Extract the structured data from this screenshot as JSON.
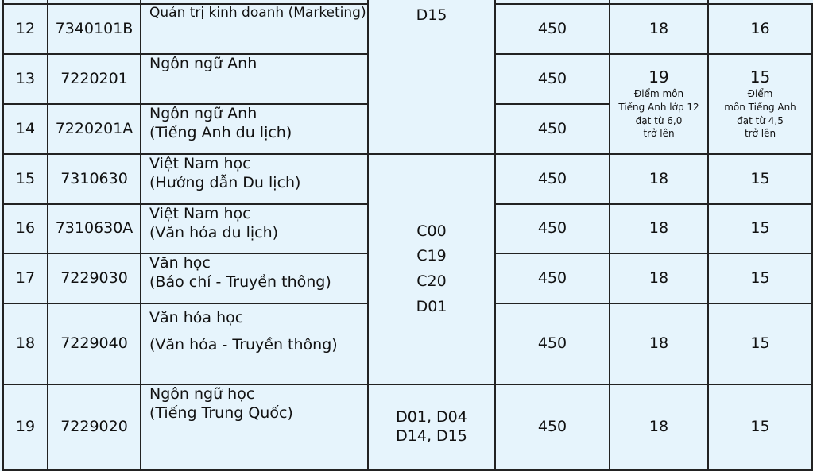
{
  "rows": [
    {
      "no": "12",
      "code": "7340101B",
      "name": "Quản trị kinh doanh (Marketing)",
      "quota": "450",
      "score_a": "18",
      "score_b": "16"
    },
    {
      "no": "13",
      "code": "7220201",
      "name": "Ngôn ngữ Anh",
      "quota": "450"
    },
    {
      "no": "14",
      "code": "7220201A",
      "name": "Ngôn ngữ Anh",
      "name2": "(Tiếng Anh du lịch)",
      "quota": "450"
    },
    {
      "no": "15",
      "code": "7310630",
      "name": "Việt Nam học",
      "name2": "(Hướng dẫn Du lịch)",
      "quota": "450",
      "score_a": "18",
      "score_b": "15"
    },
    {
      "no": "16",
      "code": "7310630A",
      "name": "Việt Nam học",
      "name2": "(Văn hóa du lịch)",
      "quota": "450",
      "score_a": "18",
      "score_b": "15"
    },
    {
      "no": "17",
      "code": "7229030",
      "name": "Văn học",
      "name2": "(Báo chí - Truyền thông)",
      "quota": "450",
      "score_a": "18",
      "score_b": "15"
    },
    {
      "no": "18",
      "code": "7229040",
      "name": "Văn hóa học",
      "name2": "(Văn hóa - Truyền thông)",
      "quota": "450",
      "score_a": "18",
      "score_b": "15"
    },
    {
      "no": "19",
      "code": "7229020",
      "name": "Ngôn ngữ học",
      "name2": "(Tiếng Trung Quốc)",
      "quota": "450",
      "score_a": "18",
      "score_b": "15"
    }
  ],
  "groups": {
    "g1": "D15",
    "g2": [
      "C00",
      "C19",
      "C20",
      "D01"
    ],
    "g3": [
      "D01, D04",
      "D14, D15"
    ]
  },
  "english": {
    "score_a": "19",
    "note_a": [
      "Điểm môn",
      "Tiếng Anh lớp 12",
      "đạt từ 6,0",
      "trở lên"
    ],
    "score_b": "15",
    "note_b": [
      "Điểm",
      "môn Tiếng Anh",
      "đạt từ 4,5",
      "trở lên"
    ]
  }
}
